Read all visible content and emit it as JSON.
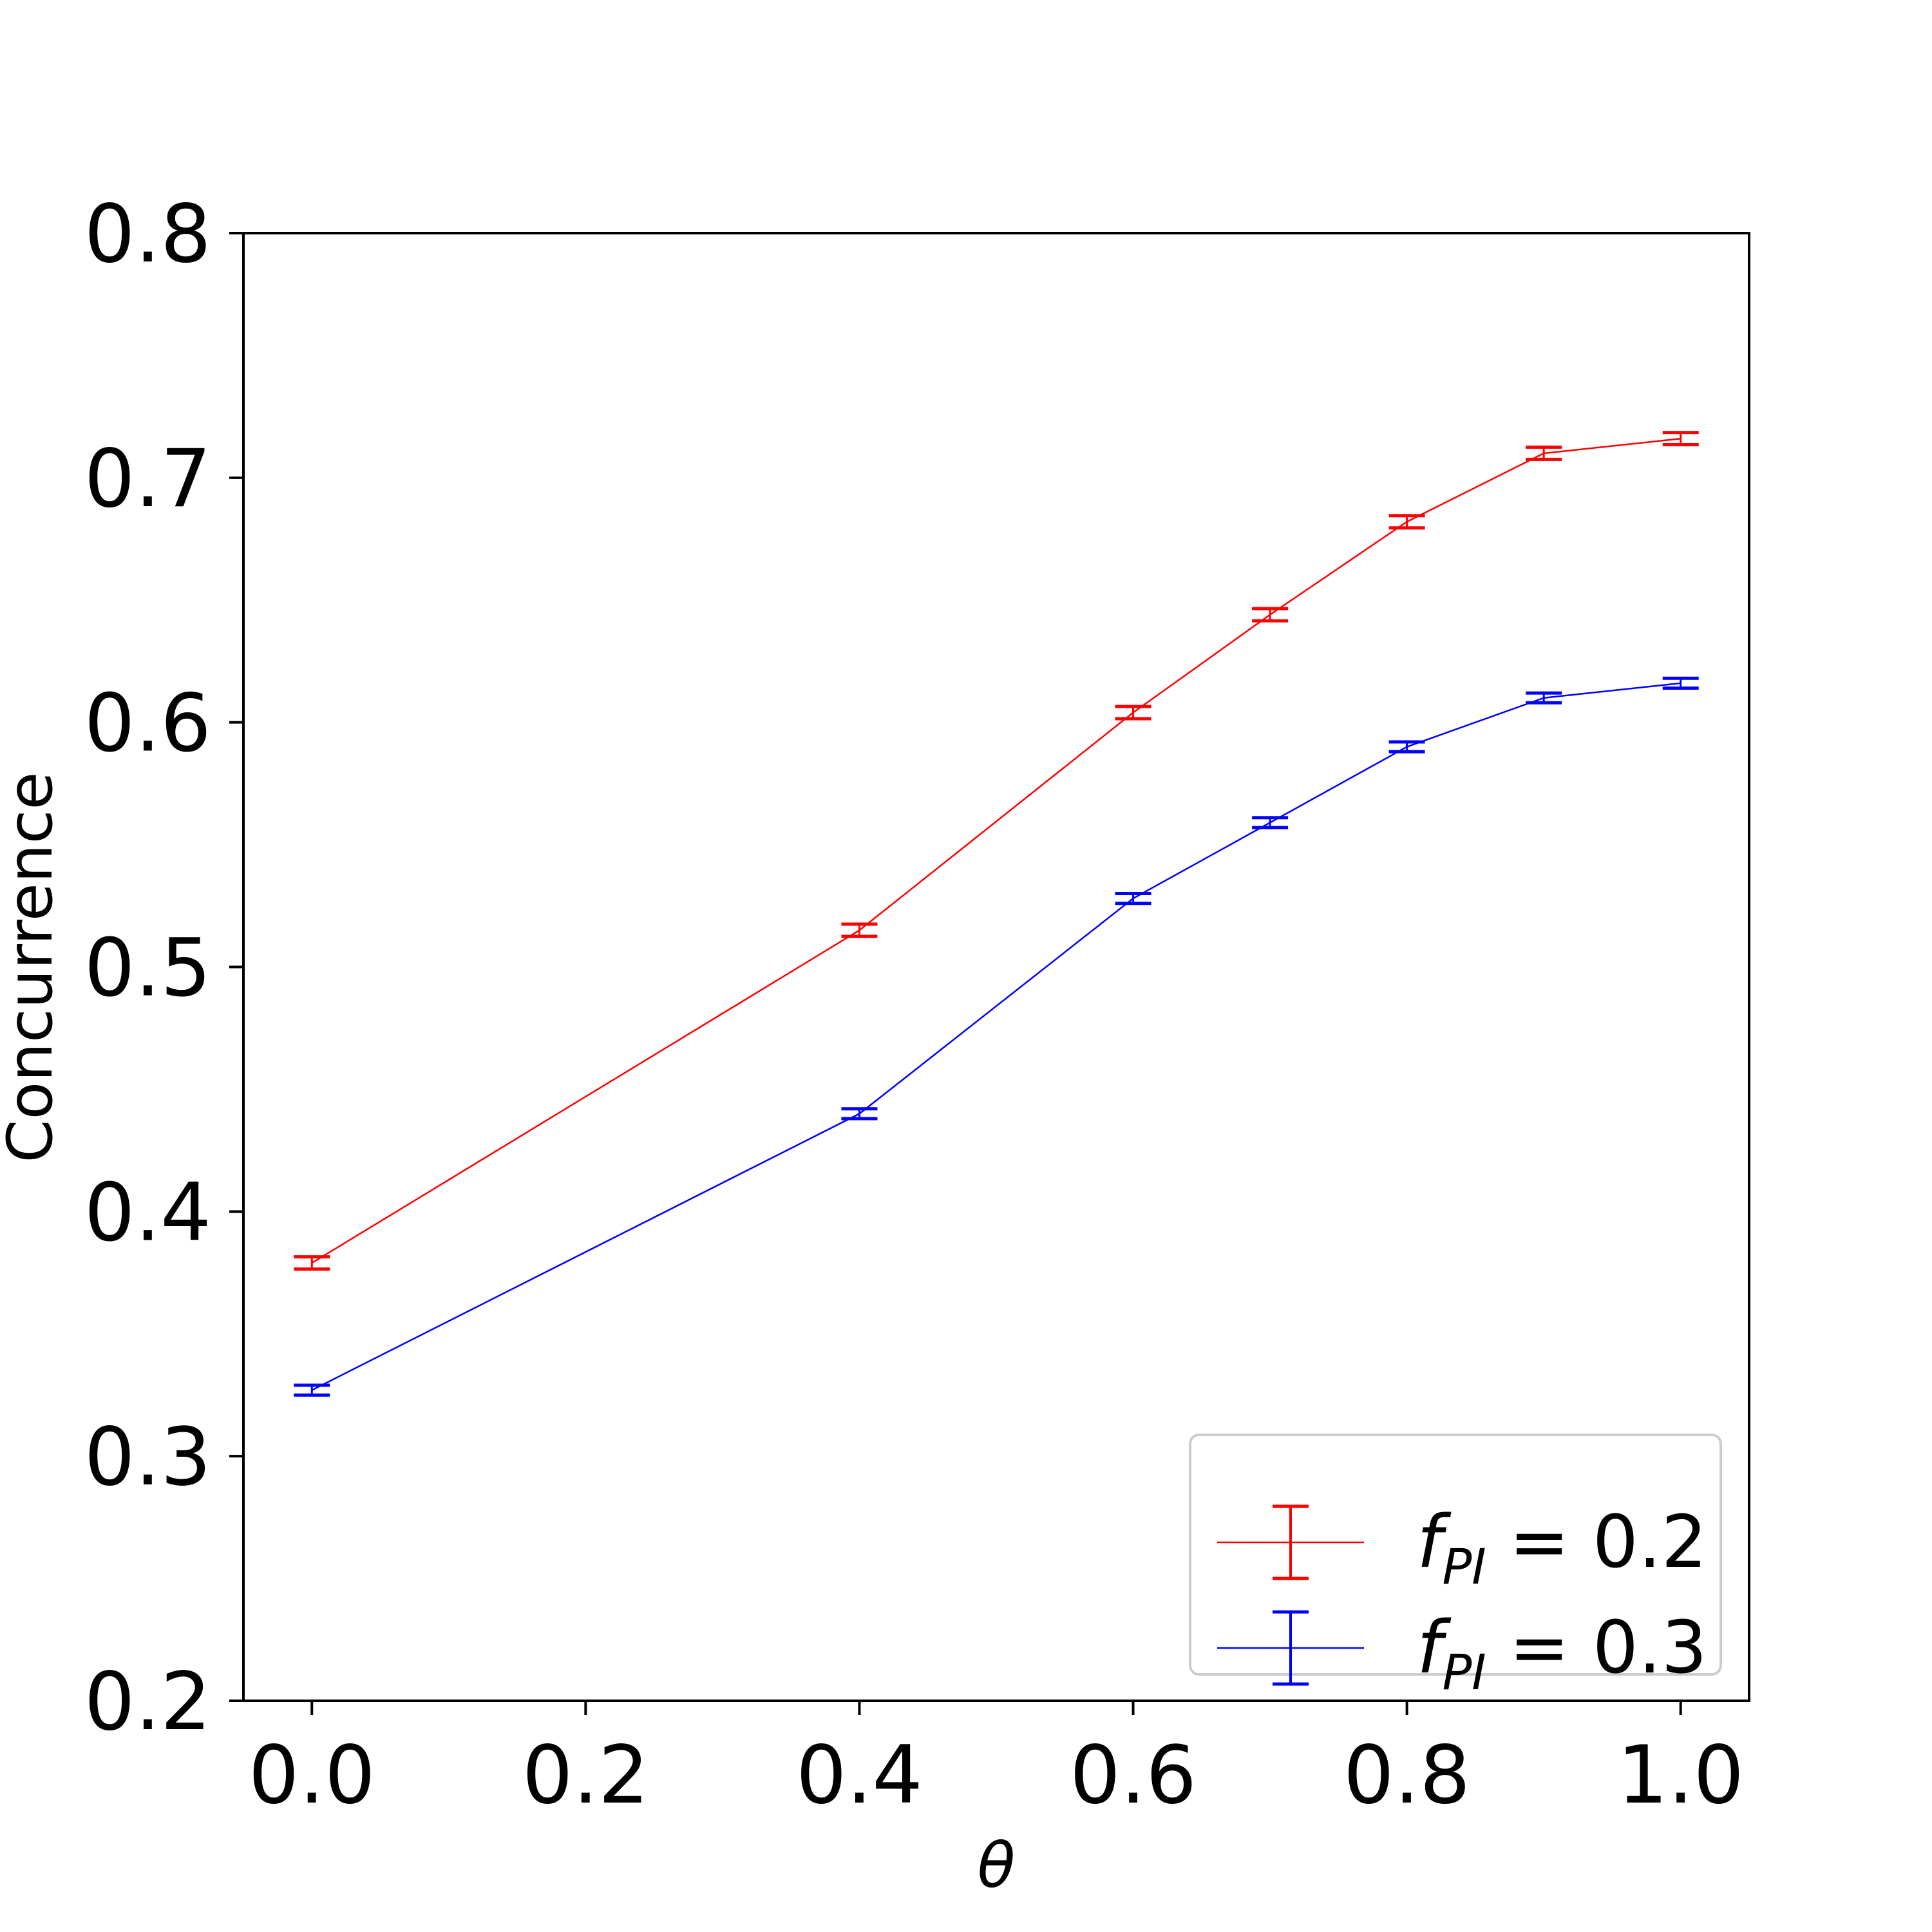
{
  "chart_data": {
    "type": "line",
    "xlabel": "θ",
    "ylabel": "Concurrence",
    "xlim": [
      -0.05,
      1.05
    ],
    "ylim": [
      0.2,
      0.8
    ],
    "xticks": [
      "0.0",
      "0.2",
      "0.4",
      "0.6",
      "0.8",
      "1.0"
    ],
    "yticks": [
      "0.2",
      "0.3",
      "0.4",
      "0.5",
      "0.6",
      "0.7",
      "0.8"
    ],
    "x": [
      0.0,
      0.4,
      0.6,
      0.7,
      0.8,
      0.9,
      1.0
    ],
    "grid": false,
    "legend_position": "bottom-right",
    "series": [
      {
        "name": "f_PI = 0.2",
        "legend_symbol": "f",
        "legend_subscript": "PI",
        "legend_value": " = 0.2",
        "color": "#ff0000",
        "values": [
          0.379,
          0.515,
          0.604,
          0.644,
          0.682,
          0.71,
          0.716
        ],
        "errors": [
          0.0025,
          0.0025,
          0.0025,
          0.0025,
          0.0025,
          0.0025,
          0.0025
        ]
      },
      {
        "name": "f_PI = 0.3",
        "legend_symbol": "f",
        "legend_subscript": "PI",
        "legend_value": " = 0.3",
        "color": "#0000ff",
        "values": [
          0.327,
          0.44,
          0.528,
          0.559,
          0.59,
          0.61,
          0.616
        ],
        "errors": [
          0.002,
          0.002,
          0.002,
          0.002,
          0.002,
          0.002,
          0.002
        ]
      }
    ]
  }
}
